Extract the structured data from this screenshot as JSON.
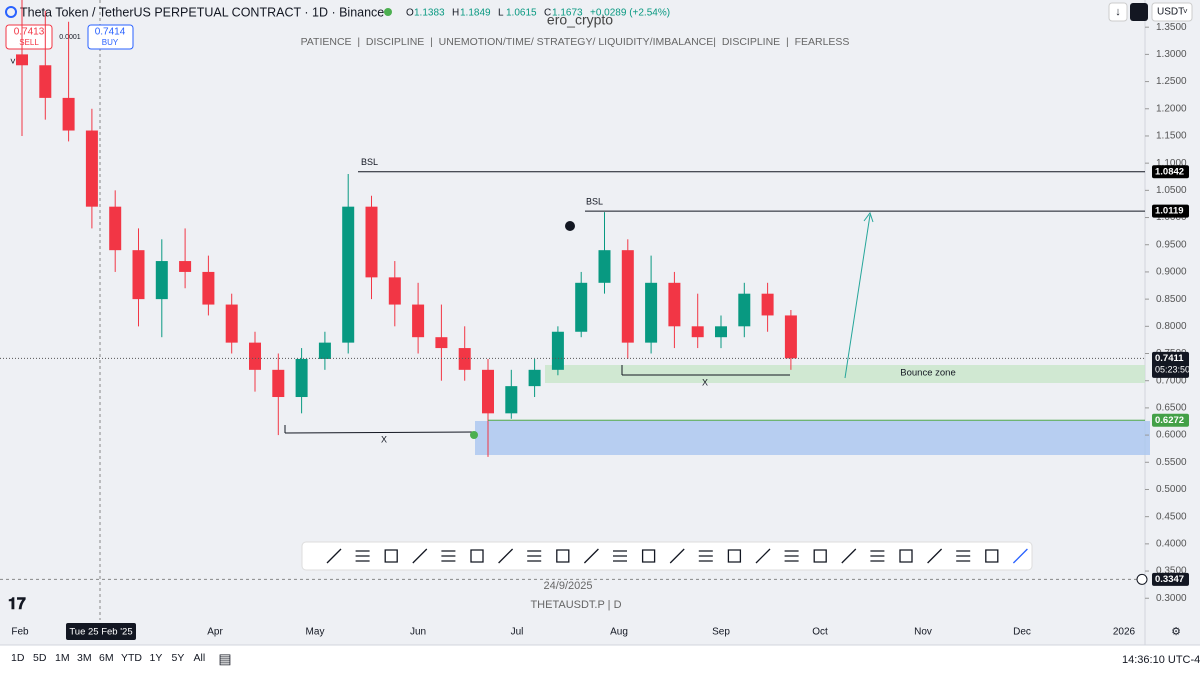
{
  "header": {
    "symbol": "Theta Token / TetherUS PERPETUAL CONTRACT · 1D · Binance",
    "ohlc": [
      {
        "key": "O",
        "value": 1.1383
      },
      {
        "key": "H",
        "value": 1.1849
      },
      {
        "key": "L",
        "value": 1.0615
      },
      {
        "key": "C",
        "value": 1.1673
      }
    ],
    "change": "+0.0289 (+2.54%)"
  },
  "trade": {
    "sell_price": "0.7413",
    "sell": "SELL",
    "spread": "0.0001",
    "buy_price": "0.7414",
    "buy": "BUY"
  },
  "indicator_count": "2",
  "currency": "USDT",
  "watermark": "ero_crypto",
  "subtitle": "PATIENCE  |  DISCIPLINE  |  UNEMOTION/TIME/ STRATEGY/ LIQUIDITY/IMBALANCE|  DISCIPLINE  |  FEARLESS",
  "chart_data": {
    "type": "candlestick",
    "up_color": "#089981",
    "down_color": "#f23645",
    "open": [
      1.3,
      1.28,
      1.22,
      1.16,
      1.02,
      0.94,
      0.85,
      0.92,
      0.9,
      0.84,
      0.77,
      0.72,
      0.67,
      0.74,
      0.77,
      1.02,
      0.89,
      0.84,
      0.78,
      0.76,
      0.72,
      0.64,
      0.69,
      0.72,
      0.79,
      0.88,
      0.94,
      0.77,
      0.88,
      0.8,
      0.78,
      0.8,
      0.86,
      0.82
    ],
    "high": [
      1.4,
      1.38,
      1.36,
      1.2,
      1.05,
      0.98,
      0.96,
      0.98,
      0.93,
      0.86,
      0.79,
      0.75,
      0.76,
      0.79,
      1.08,
      1.04,
      0.92,
      0.88,
      0.84,
      0.8,
      0.74,
      0.72,
      0.74,
      0.8,
      0.9,
      1.01,
      0.96,
      0.93,
      0.9,
      0.86,
      0.82,
      0.88,
      0.88,
      0.83
    ],
    "low": [
      1.15,
      1.18,
      1.14,
      0.98,
      0.9,
      0.8,
      0.78,
      0.87,
      0.82,
      0.75,
      0.68,
      0.6,
      0.64,
      0.72,
      0.75,
      0.85,
      0.8,
      0.75,
      0.7,
      0.7,
      0.56,
      0.63,
      0.67,
      0.71,
      0.78,
      0.86,
      0.74,
      0.75,
      0.76,
      0.76,
      0.76,
      0.78,
      0.79,
      0.72
    ],
    "close": [
      1.28,
      1.22,
      1.16,
      1.02,
      0.94,
      0.85,
      0.92,
      0.9,
      0.84,
      0.77,
      0.72,
      0.67,
      0.74,
      0.77,
      1.02,
      0.89,
      0.84,
      0.78,
      0.76,
      0.72,
      0.64,
      0.69,
      0.72,
      0.79,
      0.88,
      0.94,
      0.77,
      0.88,
      0.8,
      0.78,
      0.8,
      0.86,
      0.82,
      0.7411
    ],
    "ylim": [
      0.26,
      1.4
    ],
    "yticks": [
      {
        "value": 0.3,
        "label": "0.3000"
      },
      {
        "value": 0.35,
        "label": "0.3500"
      },
      {
        "value": 0.4,
        "label": "0.4000"
      },
      {
        "value": 0.45,
        "label": "0.4500"
      },
      {
        "value": 0.5,
        "label": "0.5000"
      },
      {
        "value": 0.55,
        "label": "0.5500"
      },
      {
        "value": 0.6,
        "label": "0.6000"
      },
      {
        "value": 0.65,
        "label": "0.6500"
      },
      {
        "value": 0.7,
        "label": "0.7000"
      },
      {
        "value": 0.75,
        "label": "0.7500"
      },
      {
        "value": 0.8,
        "label": "0.8000"
      },
      {
        "value": 0.85,
        "label": "0.8500"
      },
      {
        "value": 0.9,
        "label": "0.9000"
      },
      {
        "value": 0.95,
        "label": "0.9500"
      },
      {
        "value": 1.0,
        "label": "1.0000"
      },
      {
        "value": 1.05,
        "label": "1.0500"
      },
      {
        "value": 1.1,
        "label": "1.1000"
      },
      {
        "value": 1.15,
        "label": "1.1500"
      },
      {
        "value": 1.2,
        "label": "1.2000"
      },
      {
        "value": 1.25,
        "label": "1.2500"
      },
      {
        "value": 1.3,
        "label": "1.3000"
      },
      {
        "value": 1.35,
        "label": "1.3500"
      }
    ],
    "levels": [
      {
        "value": 1.0842,
        "color": "#000000"
      },
      {
        "value": 1.0119,
        "color": "#000000"
      },
      {
        "value": 0.7411,
        "timer": "05:23:50",
        "color": "#131722"
      },
      {
        "value": 0.6272,
        "color": "#43a047"
      },
      {
        "value": 0.3347,
        "color": "#131722"
      }
    ],
    "annotations": {
      "bsl_high": "BSL",
      "bsl_mid": "BSL",
      "x_low": "X",
      "x_mid": "X",
      "zone": "Bounce zone"
    },
    "months": [
      "Feb",
      "Apr",
      "May",
      "Jun",
      "Jul",
      "Aug",
      "Sep",
      "Oct",
      "Nov",
      "Dec",
      "2026"
    ],
    "crosshair_date": "Tue 25 Feb '25"
  },
  "footer": {
    "date": "24/9/2025",
    "symbol": "THETAUSDT.P | D"
  },
  "range_buttons": [
    "1D",
    "5D",
    "1M",
    "3M",
    "6M",
    "YTD",
    "1Y",
    "5Y",
    "All"
  ],
  "clock": "14:36:10 UTC-4"
}
